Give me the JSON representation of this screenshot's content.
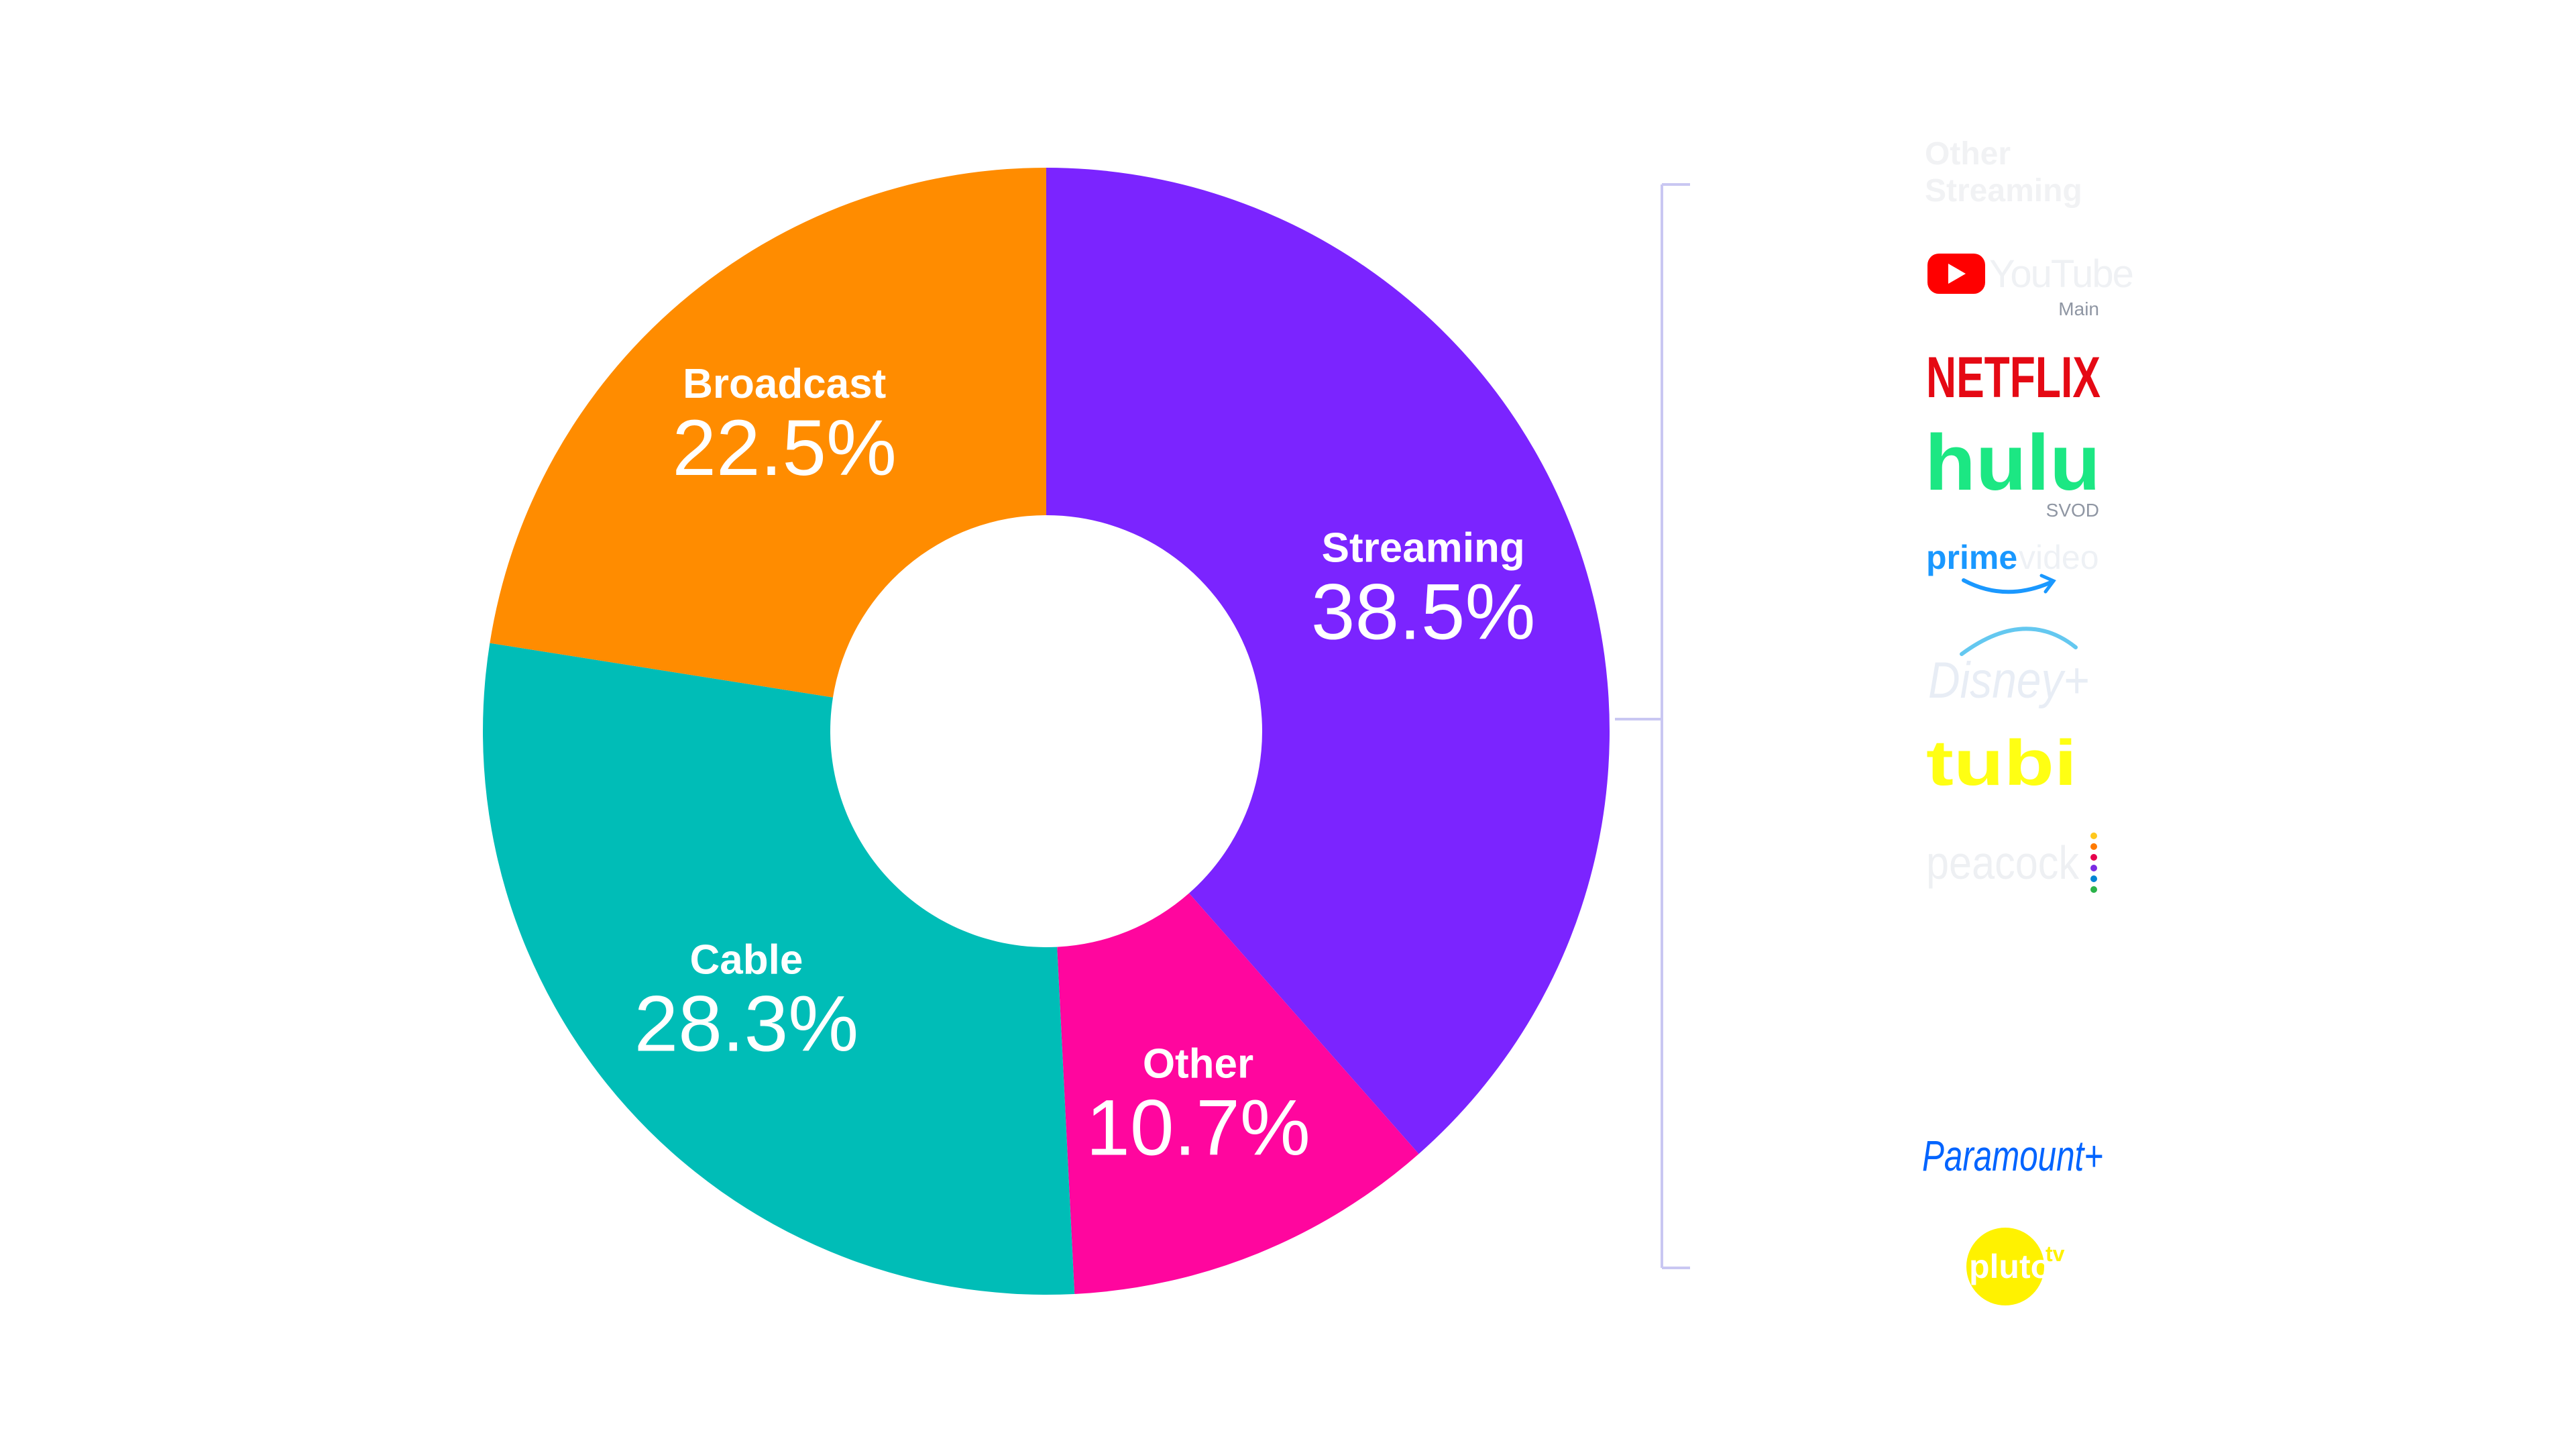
{
  "chart_data": {
    "type": "pie",
    "categories": [
      "Streaming",
      "Other",
      "Cable",
      "Broadcast"
    ],
    "values": [
      38.5,
      10.7,
      28.3,
      22.5
    ],
    "value_labels": [
      "38.5%",
      "10.7%",
      "28.3%",
      "22.5%"
    ],
    "colors": [
      "#7B24FF",
      "#FF069E",
      "#00BDB7",
      "#FF8C00"
    ],
    "donut": true,
    "start": "12 o'clock, clockwise"
  },
  "streaming_bracket": {
    "heading_line1": "Other",
    "heading_line2": "Streaming",
    "logos": [
      {
        "icon": "youtube-logo-icon",
        "name": "YouTube",
        "sub": "Main",
        "color": "#FF0000"
      },
      {
        "icon": "netflix-logo-icon",
        "name": "NETFLIX",
        "sub": "",
        "color": "#E50914"
      },
      {
        "icon": "hulu-logo-icon",
        "name": "hulu",
        "sub": "SVOD",
        "color": "#1CE783"
      },
      {
        "icon": "prime-video-logo-icon",
        "name_part1": "prime",
        "name_part2": "video",
        "sub": "",
        "color": "#1A98FF"
      },
      {
        "icon": "disney-plus-logo-icon",
        "name": "Disney+",
        "sub": "",
        "color": "#E8EDF5"
      },
      {
        "icon": "tubi-logo-icon",
        "name": "tubi",
        "sub": "",
        "color": "#FFFF13"
      },
      {
        "icon": "peacock-logo-icon",
        "name": "peacock",
        "sub": "",
        "color": "#EEF0F3"
      },
      {
        "icon": "paramount-plus-logo-icon",
        "name": "Paramount+",
        "sub": "",
        "color": "#0064FF"
      },
      {
        "icon": "pluto-tv-logo-icon",
        "name": "pluto",
        "name_suffix": "tv",
        "sub": "",
        "color": "#FFF200"
      }
    ]
  }
}
